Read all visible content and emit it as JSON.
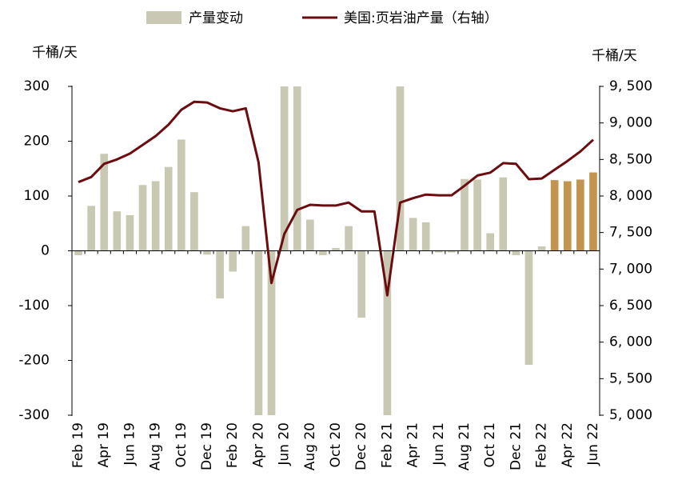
{
  "chart_data": {
    "type": "bar-line",
    "ylabel": "千桶/天",
    "y2label": "千桶/天",
    "categories": [
      "Feb 19",
      null,
      "Apr 19",
      null,
      "Jun 19",
      null,
      "Aug 19",
      null,
      "Oct 19",
      null,
      "Dec 19",
      null,
      "Feb 20",
      null,
      "Apr 20",
      null,
      "Jun 20",
      null,
      "Aug 20",
      null,
      "Oct 20",
      null,
      "Dec 20",
      null,
      "Feb 21",
      null,
      "Apr 21",
      null,
      "Jun 21",
      null,
      "Aug 21",
      null,
      "Oct 21",
      null,
      "Dec 21",
      null,
      "Feb 22",
      null,
      "Apr 22",
      null,
      "Jun 22"
    ],
    "series": [
      {
        "name": "产量变动",
        "type": "bar",
        "color": "#c9c8b2",
        "forecast_color": "#c4934e",
        "forecast_from": 37,
        "values": [
          -8,
          82,
          177,
          72,
          65,
          120,
          127,
          153,
          203,
          107,
          -7,
          -87,
          -38,
          45,
          -300,
          -300,
          300,
          300,
          57,
          -8,
          5,
          45,
          -122,
          0,
          -300,
          300,
          60,
          52,
          -3,
          -3,
          131,
          130,
          32,
          134,
          -8,
          -208,
          8,
          129,
          127,
          130,
          143
        ]
      },
      {
        "name": "美国:页岩油产量（右轴）",
        "type": "line",
        "axis": "y2",
        "color": "#6b0d10",
        "values": [
          8190,
          8260,
          8440,
          8500,
          8580,
          8700,
          8820,
          8975,
          9180,
          9290,
          9280,
          9200,
          9160,
          9200,
          8460,
          6810,
          7480,
          7810,
          7880,
          7870,
          7870,
          7910,
          7790,
          7790,
          6640,
          7910,
          7970,
          8020,
          8010,
          8010,
          8140,
          8280,
          8320,
          8450,
          8440,
          8230,
          8240,
          8360,
          8480,
          8610,
          8770
        ]
      }
    ],
    "ylim": [
      -300,
      300
    ],
    "yticks": [
      -300,
      -200,
      -100,
      0,
      100,
      200,
      300
    ],
    "y2lim": [
      5000,
      9500
    ],
    "y2ticks": [
      {
        "value": 5000,
        "label": "5, 000"
      },
      {
        "value": 5500,
        "label": "5, 500"
      },
      {
        "value": 6000,
        "label": "6, 000"
      },
      {
        "value": 6500,
        "label": "6, 500"
      },
      {
        "value": 7000,
        "label": "7, 000"
      },
      {
        "value": 7500,
        "label": "7, 500"
      },
      {
        "value": 8000,
        "label": "8, 000"
      },
      {
        "value": 8500,
        "label": "8, 500"
      },
      {
        "value": 9000,
        "label": "9, 000"
      },
      {
        "value": 9500,
        "label": "9, 500"
      }
    ],
    "grid": false
  }
}
